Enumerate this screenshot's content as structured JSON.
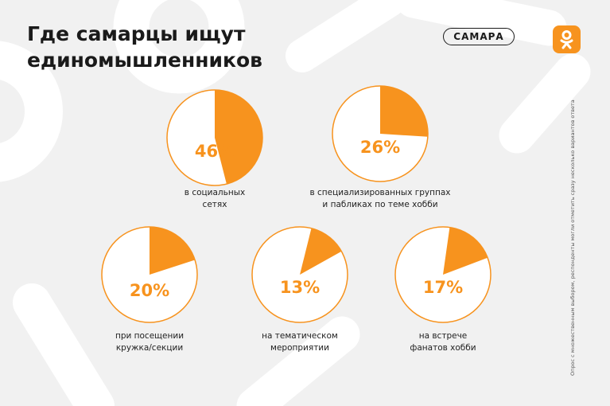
{
  "title_line1": "Где самарцы ищут",
  "title_line2": "единомышленников",
  "city_badge": "САМАРА",
  "side_note": "Опрос с множественным выбором, респонденты могли отметить сразу несколько вариантов ответа",
  "colors": {
    "accent": "#f7931e",
    "background": "#f1f1f1",
    "text": "#222222"
  },
  "icons": {
    "logo": "odnoklassniki-logo-icon"
  },
  "chart_data": {
    "type": "pie",
    "unit": "%",
    "items": [
      {
        "value": 46,
        "label": "46%",
        "category": [
          "в социальных",
          "сетях"
        ]
      },
      {
        "value": 26,
        "label": "26%",
        "category": [
          "в специализированных группах",
          "и пабликах по теме хобби"
        ]
      },
      {
        "value": 20,
        "label": "20%",
        "category": [
          "при посещении",
          "кружка/секции"
        ]
      },
      {
        "value": 13,
        "label": "13%",
        "category": [
          "на тематическом",
          "мероприятии"
        ]
      },
      {
        "value": 17,
        "label": "17%",
        "category": [
          "на встрече",
          "фанатов хобби"
        ]
      }
    ]
  }
}
